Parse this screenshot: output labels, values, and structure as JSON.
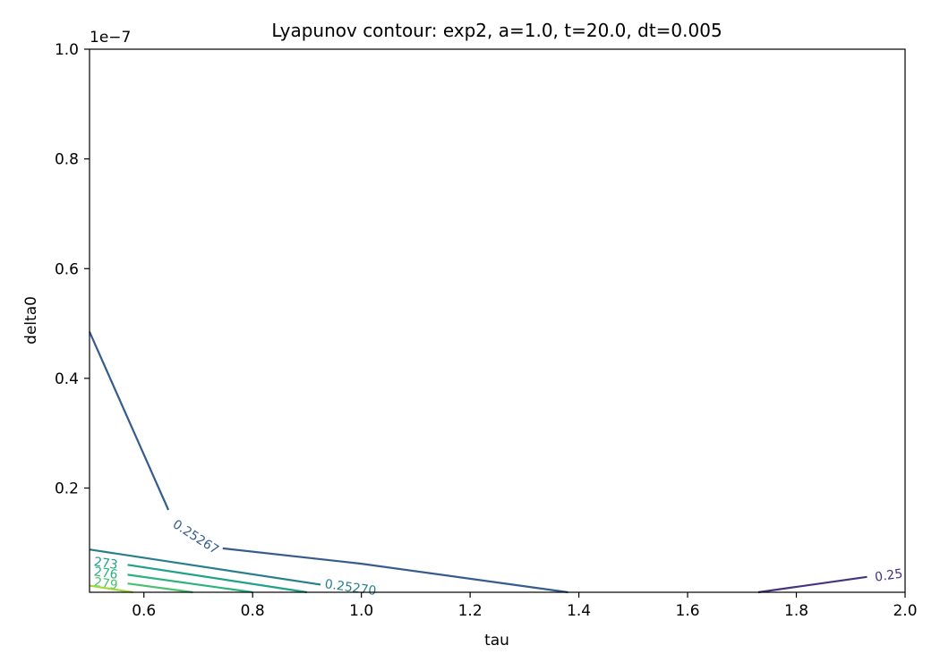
{
  "chart_data": {
    "type": "contour",
    "title": "Lyapunov contour: exp2, a=1.0, t=20.0, dt=0.005",
    "xlabel": "tau",
    "ylabel": "delta0",
    "y_offset_label": "1e−7",
    "xlim": [
      0.5,
      2.0
    ],
    "ylim": [
      1e-09,
      1e-07
    ],
    "x_ticks": [
      0.6,
      0.8,
      1.0,
      1.2,
      1.4,
      1.6,
      1.8,
      2.0
    ],
    "x_tick_labels": [
      "0.6",
      "0.8",
      "1.0",
      "1.2",
      "1.4",
      "1.6",
      "1.8",
      "2.0"
    ],
    "y_ticks": [
      2e-08,
      4e-08,
      6e-08,
      8e-08,
      1e-07
    ],
    "y_tick_labels": [
      "0.2",
      "0.4",
      "0.6",
      "0.8",
      "1.0"
    ],
    "grid": false,
    "levels": [
      {
        "label": "0.25",
        "color": "#46337e",
        "points": [
          [
            1.73,
            1e-09
          ],
          [
            1.93,
            3.8e-09
          ]
        ],
        "label_at": [
          1.97,
          4e-09
        ],
        "label_angle": -8
      },
      {
        "label": "0.25267",
        "color": "#365c8d",
        "points": [
          [
            0.5,
            4.85e-08
          ],
          [
            0.645,
            1.6e-08
          ]
        ],
        "points2": [
          [
            0.745,
            9e-09
          ],
          [
            1.0,
            6.2e-09
          ],
          [
            1.38,
            1e-09
          ]
        ],
        "label_at": [
          0.695,
          1.1e-08
        ],
        "label_angle": 33
      },
      {
        "label": "0.25270",
        "color": "#277f8e",
        "points": [
          [
            0.5,
            8.8e-09
          ],
          [
            0.925,
            2.4e-09
          ]
        ],
        "label_at": [
          0.98,
          1.8e-09
        ],
        "label_angle": 8
      },
      {
        "label": "273",
        "color": "#1fa187",
        "points": [
          [
            0.57,
            6e-09
          ],
          [
            0.9,
            1e-09
          ]
        ],
        "label_at": [
          0.53,
          6.2e-09
        ],
        "label_angle": 8
      },
      {
        "label": "276",
        "color": "#2db27d",
        "points": [
          [
            0.57,
            4.2e-09
          ],
          [
            0.8,
            1e-09
          ]
        ],
        "label_at": [
          0.53,
          4.4e-09
        ],
        "label_angle": 8
      },
      {
        "label": "279",
        "color": "#4ac16d",
        "points": [
          [
            0.57,
            2.6e-09
          ],
          [
            0.69,
            1e-09
          ]
        ],
        "label_at": [
          0.53,
          2.5e-09
        ],
        "label_angle": 8
      },
      {
        "label": "",
        "color": "#a0da39",
        "points": [
          [
            0.5,
            2.2e-09
          ],
          [
            0.58,
            1e-09
          ]
        ],
        "label_at": null,
        "label_angle": 0
      }
    ]
  }
}
